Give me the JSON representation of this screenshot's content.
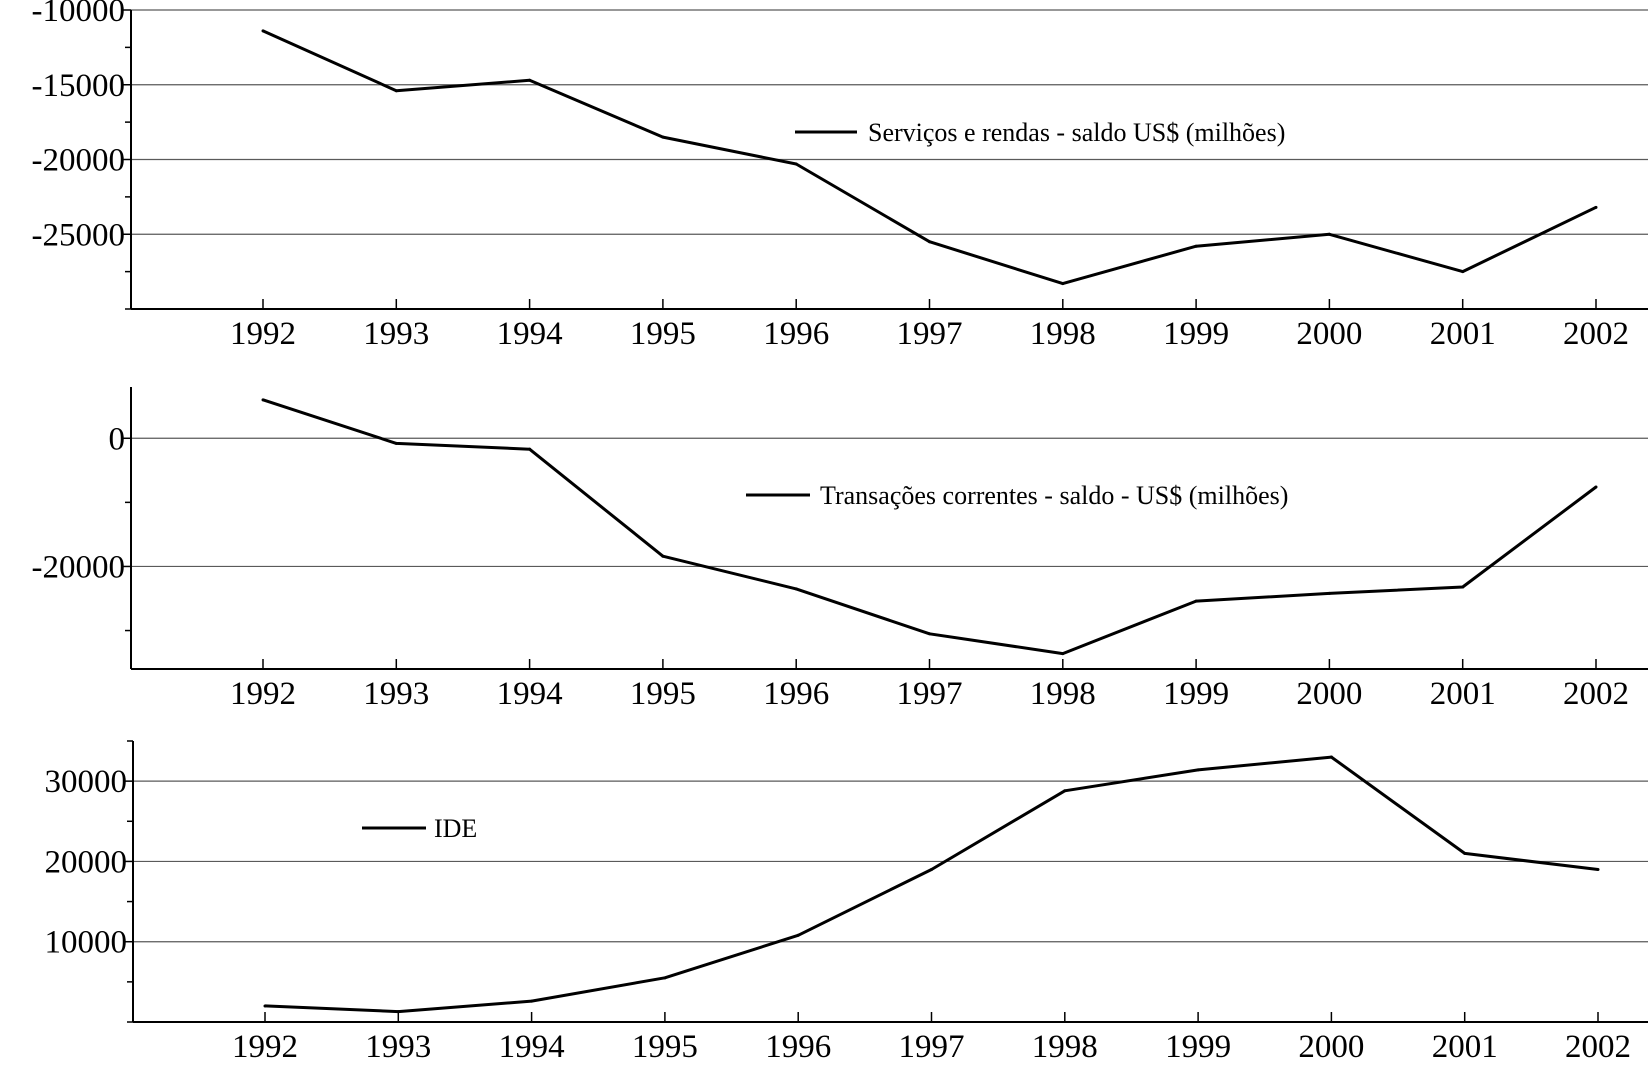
{
  "chart_data": [
    {
      "type": "line",
      "x": [
        1992,
        1993,
        1994,
        1995,
        1996,
        1997,
        1998,
        1999,
        2000,
        2001,
        2002
      ],
      "series": [
        {
          "name": "Serviços e rendas - saldo US$ (milhões)",
          "values": [
            -11400,
            -15400,
            -14700,
            -18500,
            -20300,
            -25500,
            -28300,
            -25800,
            -25000,
            -27500,
            -23200
          ]
        }
      ],
      "yticks": [
        -10000,
        -15000,
        -20000,
        -25000
      ],
      "ylim": [
        -30000,
        -10000
      ],
      "legend_position": "top-center"
    },
    {
      "type": "line",
      "x": [
        1992,
        1993,
        1994,
        1995,
        1996,
        1997,
        1998,
        1999,
        2000,
        2001,
        2002
      ],
      "series": [
        {
          "name": "Transações correntes - saldo - US$ (milhões)",
          "values": [
            6000,
            -800,
            -1700,
            -18400,
            -23500,
            -30500,
            -33600,
            -25400,
            -24200,
            -23200,
            -7600
          ]
        }
      ],
      "yticks": [
        0,
        -20000
      ],
      "ylim": [
        -36000,
        8000
      ],
      "legend_position": "top-center"
    },
    {
      "type": "line",
      "x": [
        1992,
        1993,
        1994,
        1995,
        1996,
        1997,
        1998,
        1999,
        2000,
        2001,
        2002
      ],
      "series": [
        {
          "name": "IDE",
          "values": [
            2000,
            1300,
            2600,
            5500,
            10800,
            19000,
            28800,
            31400,
            33000,
            21000,
            19000
          ]
        }
      ],
      "yticks": [
        30000,
        20000,
        10000
      ],
      "ylim": [
        0,
        35000
      ],
      "legend_position": "top-left"
    }
  ]
}
